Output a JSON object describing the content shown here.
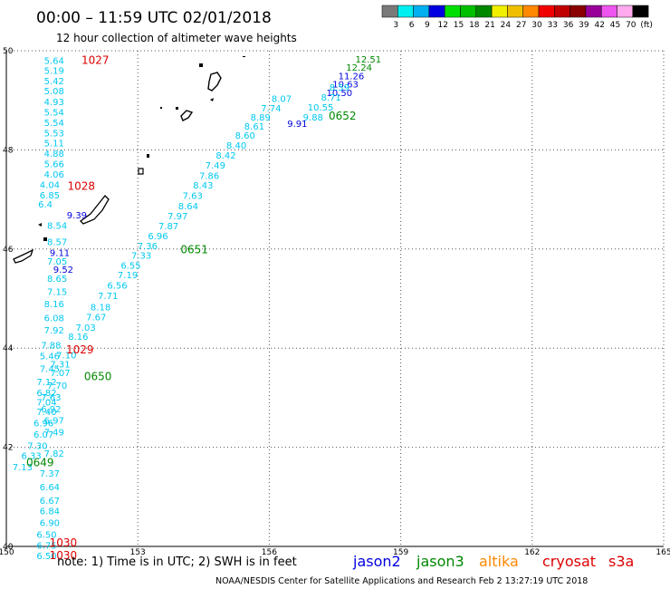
{
  "header": {
    "title": "00:00 – 11:59 UTC 02/01/2018",
    "subtitle": "12 hour collection of altimeter wave heights"
  },
  "color_scale": {
    "labels": [
      "3",
      "6",
      "9",
      "12",
      "15",
      "18",
      "21",
      "24",
      "27",
      "30",
      "33",
      "36",
      "39",
      "42",
      "45",
      "70",
      "(ft)"
    ],
    "colors": [
      "#7a7a7a",
      "#00f0f0",
      "#00b0f0",
      "#0000e0",
      "#00e000",
      "#00c000",
      "#008800",
      "#f0f000",
      "#f0c000",
      "#ff8800",
      "#f00000",
      "#c00000",
      "#880000",
      "#990099",
      "#ee55ee",
      "#ffaaee",
      "#000000"
    ]
  },
  "footer": {
    "note": "note:  1) Time is in UTC;  2) SWH is in feet",
    "satellites": [
      {
        "name": "jason2",
        "color": "#0000e0"
      },
      {
        "name": "jason3",
        "color": "#008800"
      },
      {
        "name": "altika",
        "color": "#ff8800"
      },
      {
        "name": "cryosat",
        "color": "#dd0000"
      },
      {
        "name": "s3a",
        "color": "#dd0000"
      }
    ],
    "credit": "NOAA/NESDIS Center for Satellite Applications and Research     Feb  2 13:27:19 UTC 2018"
  },
  "chart_data": {
    "type": "scatter",
    "title": "00:00 – 11:59 UTC 02/01/2018",
    "xlim": [
      150,
      165
    ],
    "ylim": [
      40,
      50
    ],
    "x_ticks": [
      150,
      153,
      156,
      159,
      162,
      165
    ],
    "y_ticks": [
      40,
      42,
      44,
      46,
      48,
      50
    ],
    "grid": true,
    "series": [
      {
        "name": "jason2",
        "color": "#0000e0",
        "points": [
          {
            "x": 157.87,
            "y": 49.5,
            "v": "11.26"
          },
          {
            "x": 157.74,
            "y": 49.33,
            "v": "10.63"
          },
          {
            "x": 157.6,
            "y": 49.16,
            "v": "10.50"
          },
          {
            "x": 156.64,
            "y": 48.54,
            "v": "9.91"
          },
          {
            "x": 151.61,
            "y": 46.69,
            "v": "9.39"
          },
          {
            "x": 151.22,
            "y": 45.93,
            "v": "9.11"
          },
          {
            "x": 151.3,
            "y": 45.59,
            "v": "9.52"
          }
        ]
      },
      {
        "name": "jason3",
        "color": "#008800",
        "points": [
          {
            "x": 158.26,
            "y": 49.84,
            "v": "12.51"
          },
          {
            "x": 158.05,
            "y": 49.67,
            "v": "12.24"
          }
        ]
      },
      {
        "name": "swh_cyan",
        "color": "#00c8f0",
        "points": [
          {
            "x": 151.09,
            "y": 49.81,
            "v": "5.64"
          },
          {
            "x": 151.09,
            "y": 49.61,
            "v": "5.19"
          },
          {
            "x": 151.09,
            "y": 49.4,
            "v": "5.42"
          },
          {
            "x": 151.09,
            "y": 49.2,
            "v": "5.08"
          },
          {
            "x": 151.09,
            "y": 48.98,
            "v": "4.93"
          },
          {
            "x": 151.09,
            "y": 48.77,
            "v": "5.54"
          },
          {
            "x": 151.09,
            "y": 48.56,
            "v": "5.54"
          },
          {
            "x": 151.09,
            "y": 48.35,
            "v": "5.53"
          },
          {
            "x": 151.09,
            "y": 48.14,
            "v": "5.11"
          },
          {
            "x": 151.09,
            "y": 47.93,
            "v": "4.88"
          },
          {
            "x": 151.09,
            "y": 47.72,
            "v": "5.66"
          },
          {
            "x": 151.09,
            "y": 47.51,
            "v": "4.06"
          },
          {
            "x": 150.99,
            "y": 47.3,
            "v": "4.04"
          },
          {
            "x": 150.99,
            "y": 47.09,
            "v": "6.85"
          },
          {
            "x": 150.89,
            "y": 46.91,
            "v": "6.4"
          },
          {
            "x": 151.16,
            "y": 46.48,
            "v": "8.54"
          },
          {
            "x": 151.16,
            "y": 46.15,
            "v": "8.57"
          },
          {
            "x": 151.16,
            "y": 45.76,
            "v": "7.05"
          },
          {
            "x": 151.16,
            "y": 45.41,
            "v": "8.65"
          },
          {
            "x": 151.16,
            "y": 45.15,
            "v": "7.15"
          },
          {
            "x": 151.09,
            "y": 44.9,
            "v": "8.16"
          },
          {
            "x": 151.09,
            "y": 44.62,
            "v": "6.08"
          },
          {
            "x": 151.09,
            "y": 44.37,
            "v": "7.92"
          },
          {
            "x": 151.02,
            "y": 44.07,
            "v": "7.88"
          },
          {
            "x": 150.99,
            "y": 43.85,
            "v": "5.46"
          },
          {
            "x": 150.99,
            "y": 43.59,
            "v": "7.45"
          },
          {
            "x": 150.92,
            "y": 43.33,
            "v": "7.12"
          },
          {
            "x": 150.92,
            "y": 43.11,
            "v": "6.82"
          },
          {
            "x": 150.92,
            "y": 42.92,
            "v": "7.04"
          },
          {
            "x": 150.92,
            "y": 42.72,
            "v": "7.40"
          },
          {
            "x": 150.85,
            "y": 42.5,
            "v": "6.96"
          },
          {
            "x": 150.85,
            "y": 42.27,
            "v": "6.07"
          },
          {
            "x": 150.71,
            "y": 42.04,
            "v": "7.30"
          },
          {
            "x": 150.57,
            "y": 41.84,
            "v": "6.33"
          },
          {
            "x": 150.37,
            "y": 41.61,
            "v": "7.13"
          },
          {
            "x": 151.09,
            "y": 41.88,
            "v": "7.82"
          },
          {
            "x": 151.09,
            "y": 42.31,
            "v": "7.49"
          },
          {
            "x": 151.09,
            "y": 42.55,
            "v": "6.97"
          },
          {
            "x": 151.02,
            "y": 42.78,
            "v": "6.92"
          },
          {
            "x": 151.02,
            "y": 43.02,
            "v": "7.63"
          },
          {
            "x": 151.16,
            "y": 43.25,
            "v": "7.70"
          },
          {
            "x": 151.23,
            "y": 43.51,
            "v": "7.07"
          },
          {
            "x": 151.23,
            "y": 43.68,
            "v": "7.31"
          },
          {
            "x": 151.37,
            "y": 43.87,
            "v": "7.10"
          },
          {
            "x": 150.99,
            "y": 41.48,
            "v": "7.37"
          },
          {
            "x": 150.99,
            "y": 41.21,
            "v": "6.64"
          },
          {
            "x": 150.99,
            "y": 40.93,
            "v": "6.67"
          },
          {
            "x": 150.99,
            "y": 40.72,
            "v": "6.84"
          },
          {
            "x": 150.99,
            "y": 40.48,
            "v": "6.90"
          },
          {
            "x": 150.92,
            "y": 40.25,
            "v": "6.50"
          },
          {
            "x": 150.92,
            "y": 40.03,
            "v": "6.75"
          },
          {
            "x": 150.92,
            "y": 39.82,
            "v": "6.50"
          },
          {
            "x": 151.64,
            "y": 44.24,
            "v": "8.16"
          },
          {
            "x": 151.81,
            "y": 44.42,
            "v": "7.03"
          },
          {
            "x": 152.05,
            "y": 44.63,
            "v": "7.67"
          },
          {
            "x": 152.15,
            "y": 44.84,
            "v": "8.18"
          },
          {
            "x": 152.32,
            "y": 45.06,
            "v": "7.71"
          },
          {
            "x": 152.53,
            "y": 45.27,
            "v": "6.56"
          },
          {
            "x": 152.77,
            "y": 45.48,
            "v": "7.19"
          },
          {
            "x": 152.84,
            "y": 45.68,
            "v": "6.55"
          },
          {
            "x": 153.08,
            "y": 45.88,
            "v": "7.33"
          },
          {
            "x": 153.22,
            "y": 46.07,
            "v": "7.36"
          },
          {
            "x": 153.46,
            "y": 46.27,
            "v": "6.96"
          },
          {
            "x": 153.7,
            "y": 46.47,
            "v": "7.87"
          },
          {
            "x": 153.91,
            "y": 46.67,
            "v": "7.97"
          },
          {
            "x": 154.15,
            "y": 46.87,
            "v": "8.64"
          },
          {
            "x": 154.25,
            "y": 47.08,
            "v": "7.63"
          },
          {
            "x": 154.49,
            "y": 47.29,
            "v": "8.43"
          },
          {
            "x": 154.63,
            "y": 47.49,
            "v": "7.86"
          },
          {
            "x": 154.77,
            "y": 47.7,
            "v": "7.49"
          },
          {
            "x": 155.01,
            "y": 47.9,
            "v": "8.42"
          },
          {
            "x": 155.25,
            "y": 48.1,
            "v": "8.40"
          },
          {
            "x": 155.45,
            "y": 48.3,
            "v": "8.60"
          },
          {
            "x": 155.66,
            "y": 48.48,
            "v": "8.61"
          },
          {
            "x": 155.8,
            "y": 48.67,
            "v": "8.89"
          },
          {
            "x": 156.04,
            "y": 48.85,
            "v": "7.74"
          },
          {
            "x": 156.28,
            "y": 49.04,
            "v": "8.07"
          },
          {
            "x": 157.0,
            "y": 48.67,
            "v": "9.88"
          },
          {
            "x": 157.17,
            "y": 48.87,
            "v": "10.55"
          },
          {
            "x": 157.41,
            "y": 49.07,
            "v": "8.71"
          },
          {
            "x": 157.6,
            "y": 49.27,
            "v": "8.59"
          }
        ]
      }
    ],
    "annotations": [
      {
        "text": "1027",
        "color": "#dd0000",
        "x": 152.03,
        "y": 49.81
      },
      {
        "text": "1028",
        "color": "#dd0000",
        "x": 151.71,
        "y": 47.27
      },
      {
        "text": "1029",
        "color": "#dd0000",
        "x": 151.68,
        "y": 43.97
      },
      {
        "text": "1030",
        "color": "#dd0000",
        "x": 151.3,
        "y": 40.07
      },
      {
        "text": "1030",
        "color": "#dd0000",
        "x": 151.3,
        "y": 39.82
      },
      {
        "text": "0652",
        "color": "#008800",
        "x": 157.67,
        "y": 48.68
      },
      {
        "text": "0651",
        "color": "#008800",
        "x": 154.29,
        "y": 45.99
      },
      {
        "text": "0650",
        "color": "#008800",
        "x": 152.09,
        "y": 43.43
      },
      {
        "text": "0649",
        "color": "#008800",
        "x": 150.77,
        "y": 41.69
      }
    ]
  }
}
